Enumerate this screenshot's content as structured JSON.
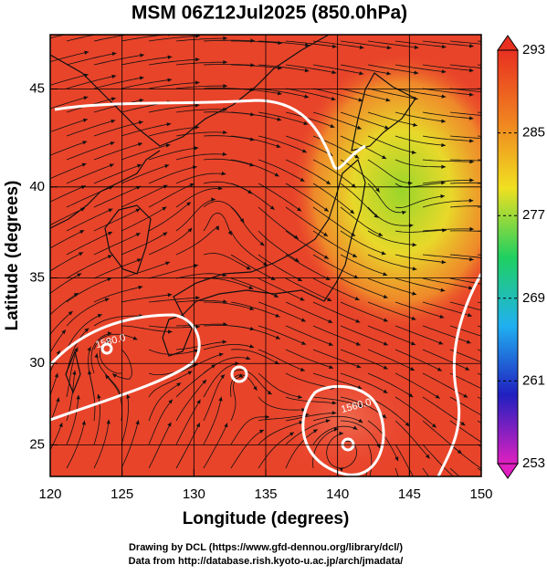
{
  "chart_data": {
    "type": "map",
    "title": "MSM 06Z12Jul2025 (850.0hPa)",
    "xlabel": "Longitude (degrees)",
    "ylabel": "Latitude  (degrees)",
    "xlim": [
      120,
      150
    ],
    "ylim": [
      23,
      47.6
    ],
    "xticks": [
      120,
      125,
      130,
      135,
      140,
      145,
      150
    ],
    "yticks": [
      25,
      30,
      35,
      40,
      45
    ],
    "grid": true,
    "colorbar": {
      "lim": [
        253,
        293
      ],
      "ticks": [
        253,
        261,
        269,
        277,
        285,
        293
      ],
      "colors": [
        "#e020c0",
        "#2020c0",
        "#20b0f0",
        "#20d060",
        "#f0e020",
        "#f08020",
        "#e83020"
      ]
    },
    "annotations": [
      {
        "text": "1580.0",
        "lon": 124.2,
        "lat": 31.3
      },
      {
        "text": "1560.0",
        "lon": 141.3,
        "lat": 27.4
      }
    ],
    "credits": [
      "Drawing by DCL (https://www.gfd-dennou.org/library/dcl/)",
      "Data from http://database.rish.kyoto-u.ac.jp/arch/jmadata/"
    ]
  }
}
